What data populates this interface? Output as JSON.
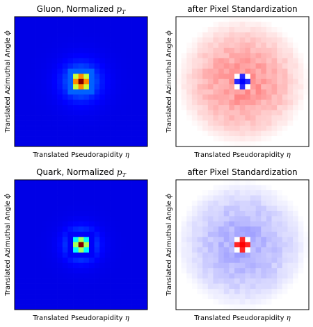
{
  "chart_data": [
    {
      "type": "heatmap",
      "title": "Gluon, Normalized",
      "title_math": "p",
      "title_math_sub": "T",
      "xlabel": "Translated Pseudorapidity",
      "xlabel_sym": "η",
      "ylabel": "Translated Azimuthal Angle",
      "ylabel_sym": "ϕ",
      "grid": false,
      "colormap": "jet",
      "pixels": 25,
      "center": [
        12,
        12
      ],
      "profile": "normalized_pt",
      "center_intensity": 1.0,
      "ring1_intensity": 0.62,
      "ring2_intensity": 0.22,
      "decay_length": 1.6
    },
    {
      "type": "heatmap",
      "title": "after Pixel Standardization",
      "xlabel": "Translated Pseudorapidity",
      "xlabel_sym": "η",
      "ylabel": "Translated Azimuthal Angle",
      "ylabel_sym": "ϕ",
      "grid": false,
      "colormap": "bwr",
      "pixels": 25,
      "center": [
        12,
        12
      ],
      "profile": "standardized",
      "center_value": -1.0,
      "cross_value": -0.85,
      "corner_value": 0.0,
      "halo_value": 0.45,
      "halo_falloff_radius": 12.5
    },
    {
      "type": "heatmap",
      "title": "Quark, Normalized",
      "title_math": "p",
      "title_math_sub": "T",
      "xlabel": "Translated Pseudorapidity",
      "xlabel_sym": "η",
      "ylabel": "Translated Azimuthal Angle",
      "ylabel_sym": "ϕ",
      "grid": false,
      "colormap": "jet",
      "pixels": 25,
      "center": [
        12,
        12
      ],
      "profile": "normalized_pt",
      "center_intensity": 1.0,
      "ring1_intensity": 0.42,
      "ring2_intensity": 0.12,
      "decay_length": 1.2
    },
    {
      "type": "heatmap",
      "title": "after Pixel Standardization",
      "xlabel": "Translated Pseudorapidity",
      "xlabel_sym": "η",
      "ylabel": "Translated Azimuthal Angle",
      "ylabel_sym": "ϕ",
      "grid": false,
      "colormap": "bwr",
      "pixels": 25,
      "center": [
        12,
        12
      ],
      "profile": "standardized",
      "center_value": 1.0,
      "cross_value": 0.85,
      "corner_value": 0.0,
      "halo_value": -0.35,
      "halo_falloff_radius": 12.5
    }
  ]
}
